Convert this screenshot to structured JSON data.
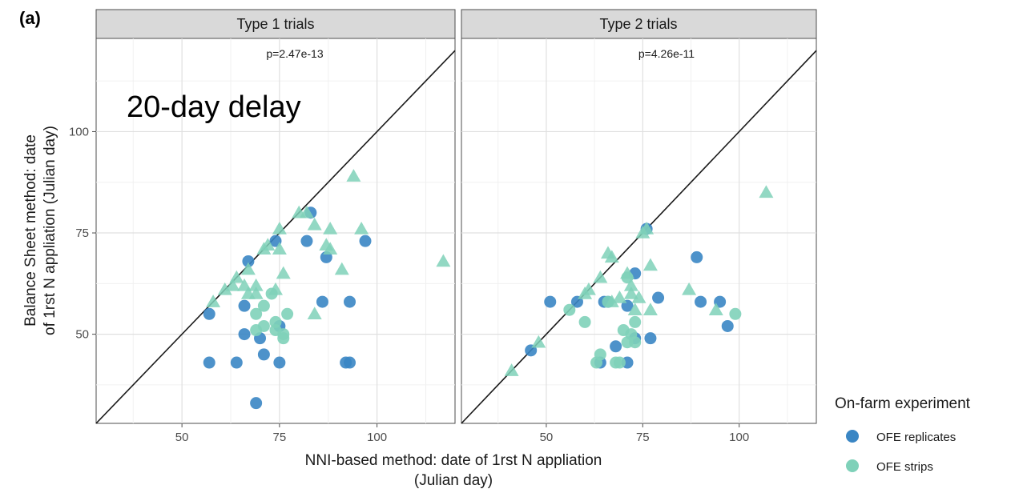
{
  "figure": {
    "panel_tag": "(a)",
    "annotation": "20-day delay"
  },
  "legend": {
    "title": "On-farm experiment",
    "entries": [
      {
        "label": "OFE replicates",
        "color": "#3a86c4",
        "shape": "circle"
      },
      {
        "label": "OFE strips",
        "color": "#7fd1b9",
        "shape": "circle"
      }
    ]
  },
  "chart_data": {
    "type": "scatter",
    "xlabel": [
      "NNI-based method: date of 1rst N appliation",
      "(Julian day)"
    ],
    "ylabel": [
      "Balance Sheet method: date",
      "of 1rst N appliation (Julian day)"
    ],
    "xlim": [
      28,
      120
    ],
    "ylim": [
      28,
      123
    ],
    "x_ticks": [
      50,
      75,
      100
    ],
    "y_ticks": [
      50,
      75,
      100
    ],
    "grid": true,
    "legend_position": "right",
    "reference_line": "y = x",
    "colors": {
      "replicates": "#3a86c4",
      "strips": "#7fd1b9",
      "line": "#1a1a1a",
      "strip_bg": "#d9d9d9"
    },
    "panels": [
      {
        "title": "Type 1 trials",
        "pvalue": "p=2.47e-13",
        "series": [
          {
            "name": "OFE replicates",
            "marker": "circle",
            "points": [
              [
                57,
                55
              ],
              [
                57,
                43
              ],
              [
                64,
                43
              ],
              [
                66,
                57
              ],
              [
                66,
                50
              ],
              [
                67,
                68
              ],
              [
                70,
                49
              ],
              [
                71,
                45
              ],
              [
                74,
                73
              ],
              [
                75,
                52
              ],
              [
                75,
                43
              ],
              [
                82,
                73
              ],
              [
                83,
                80
              ],
              [
                86,
                58
              ],
              [
                87,
                69
              ],
              [
                92,
                43
              ],
              [
                93,
                43
              ],
              [
                93,
                58
              ],
              [
                97,
                73
              ],
              [
                69,
                33
              ]
            ]
          },
          {
            "name": "OFE strips",
            "marker": "circle",
            "points": [
              [
                69,
                55
              ],
              [
                69,
                51
              ],
              [
                71,
                57
              ],
              [
                71,
                52
              ],
              [
                73,
                60
              ],
              [
                74,
                53
              ],
              [
                74,
                51
              ],
              [
                76,
                50
              ],
              [
                76,
                49
              ],
              [
                77,
                55
              ]
            ]
          },
          {
            "name": "OFE strips",
            "marker": "triangle",
            "points": [
              [
                58,
                58
              ],
              [
                61,
                61
              ],
              [
                63,
                62
              ],
              [
                64,
                64
              ],
              [
                66,
                62
              ],
              [
                67,
                66
              ],
              [
                67,
                60
              ],
              [
                69,
                62
              ],
              [
                69,
                60
              ],
              [
                71,
                71
              ],
              [
                72,
                72
              ],
              [
                74,
                61
              ],
              [
                75,
                76
              ],
              [
                75,
                71
              ],
              [
                76,
                65
              ],
              [
                80,
                80
              ],
              [
                82,
                80
              ],
              [
                84,
                77
              ],
              [
                84,
                55
              ],
              [
                87,
                72
              ],
              [
                88,
                76
              ],
              [
                88,
                71
              ],
              [
                91,
                66
              ],
              [
                94,
                89
              ],
              [
                96,
                76
              ],
              [
                117,
                68
              ]
            ]
          }
        ]
      },
      {
        "title": "Type 2 trials",
        "pvalue": "p=4.26e-11",
        "series": [
          {
            "name": "OFE replicates",
            "marker": "circle",
            "points": [
              [
                46,
                46
              ],
              [
                51,
                58
              ],
              [
                58,
                58
              ],
              [
                64,
                43
              ],
              [
                65,
                58
              ],
              [
                66,
                58
              ],
              [
                68,
                47
              ],
              [
                71,
                43
              ],
              [
                71,
                57
              ],
              [
                73,
                65
              ],
              [
                73,
                49
              ],
              [
                76,
                76
              ],
              [
                77,
                49
              ],
              [
                79,
                59
              ],
              [
                89,
                69
              ],
              [
                90,
                58
              ],
              [
                95,
                58
              ],
              [
                97,
                52
              ]
            ]
          },
          {
            "name": "OFE strips",
            "marker": "circle",
            "points": [
              [
                56,
                56
              ],
              [
                60,
                53
              ],
              [
                63,
                43
              ],
              [
                64,
                45
              ],
              [
                66,
                58
              ],
              [
                68,
                43
              ],
              [
                69,
                43
              ],
              [
                70,
                51
              ],
              [
                71,
                64
              ],
              [
                71,
                48
              ],
              [
                72,
                50
              ],
              [
                73,
                53
              ],
              [
                73,
                48
              ],
              [
                99,
                55
              ]
            ]
          },
          {
            "name": "OFE strips",
            "marker": "triangle",
            "points": [
              [
                41,
                41
              ],
              [
                48,
                48
              ],
              [
                60,
                60
              ],
              [
                61,
                61
              ],
              [
                64,
                64
              ],
              [
                66,
                70
              ],
              [
                67,
                69
              ],
              [
                67,
                58
              ],
              [
                69,
                59
              ],
              [
                71,
                65
              ],
              [
                72,
                60
              ],
              [
                72,
                62
              ],
              [
                73,
                56
              ],
              [
                74,
                59
              ],
              [
                75,
                75
              ],
              [
                76,
                76
              ],
              [
                77,
                67
              ],
              [
                77,
                56
              ],
              [
                87,
                61
              ],
              [
                94,
                56
              ],
              [
                107,
                85
              ]
            ]
          }
        ]
      }
    ]
  }
}
